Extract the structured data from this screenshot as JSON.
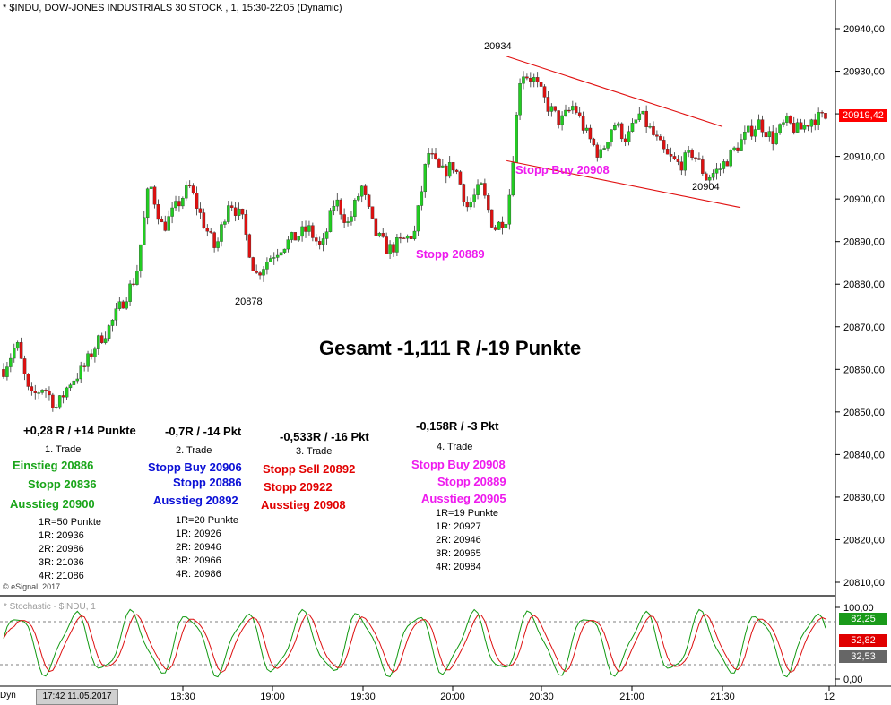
{
  "header": {
    "title": "* $INDU, DOW-JONES INDUSTRIALS 30 STOCK , 1, 15:30-22:05 (Dynamic)",
    "copyright": "© eSignal, 2017",
    "stoch_label": "* Stochastic - $INDU, 1",
    "dyn": "Dyn",
    "status_time": "17:42 11.05.2017"
  },
  "chart_data": {
    "type": "candlestick",
    "x_ticks": [
      "18:30",
      "19:00",
      "19:30",
      "20:00",
      "20:30",
      "21:00",
      "21:30",
      "12"
    ],
    "y_ticks": [
      "20940,00",
      "20930,00",
      "20920,00",
      "20910,00",
      "20900,00",
      "20890,00",
      "20880,00",
      "20870,00",
      "20860,00",
      "20850,00",
      "20840,00",
      "20830,00",
      "20820,00",
      "20810,00"
    ],
    "ylim": [
      20806,
      20946
    ],
    "last_price": "20919,42",
    "path_price": [
      20860,
      20866,
      20853,
      20856,
      20851,
      20857,
      20860,
      20866,
      20870,
      20876,
      20882,
      20904,
      20893,
      20898,
      20903,
      20895,
      20888,
      20900,
      20895,
      20882,
      20886,
      20889,
      20891,
      20893,
      20888,
      20900,
      20894,
      20903,
      20892,
      20888,
      20890,
      20892,
      20911,
      20906,
      20908,
      20898,
      20903,
      20893,
      20896,
      20930,
      20928,
      20922,
      20918,
      20922,
      20915,
      20910,
      20918,
      20914,
      20920,
      20915,
      20910,
      20908,
      20911,
      20905,
      20907,
      20911,
      20915,
      20918,
      20914,
      20918,
      20916,
      20919,
      20919
    ],
    "candles_count": 235,
    "stochastic": {
      "ylim": [
        0,
        100
      ],
      "y_ticks": [
        "100,00",
        "0,00"
      ],
      "levels": [
        80,
        20
      ],
      "tags": [
        "82,25",
        "52,82",
        "32,53"
      ]
    },
    "annotations": {
      "high_label": "20934",
      "low_label": "20878",
      "low2_label": "20904",
      "stopp_buy": "Stopp Buy 20908",
      "stopp": "Stopp 20889",
      "total": "Gesamt -1,111 R /-19 Punkte"
    },
    "channel": {
      "upper": [
        [
          20.3,
          20933.5
        ],
        [
          21.5,
          20917
        ]
      ],
      "lower": [
        [
          20.3,
          20909
        ],
        [
          21.6,
          20898
        ]
      ]
    }
  },
  "trades": [
    {
      "summary": "+0,28 R / +14 Punkte",
      "title": "1. Trade",
      "lines": [
        "Einstieg 20886",
        "Stopp 20836",
        "Ausstieg 20900"
      ],
      "r": [
        "1R=50 Punkte",
        "1R: 20936",
        "2R: 20986",
        "3R: 21036",
        "4R: 21086"
      ]
    },
    {
      "summary": "-0,7R / -14 Pkt",
      "title": "2. Trade",
      "lines": [
        "Stopp Buy 20906",
        "Stopp 20886",
        "Ausstieg 20892"
      ],
      "r": [
        "1R=20 Punkte",
        "1R: 20926",
        "2R: 20946",
        "3R: 20966",
        "4R: 20986"
      ]
    },
    {
      "summary": "-0,533R / -16 Pkt",
      "title": "3. Trade",
      "lines": [
        "Stopp Sell 20892",
        "Stopp 20922",
        "Ausstieg 20908"
      ]
    },
    {
      "summary": "-0,158R / -3 Pkt",
      "title": "4. Trade",
      "lines": [
        "Stopp Buy 20908",
        "Stopp 20889",
        "Ausstieg 20905"
      ],
      "r": [
        "1R=19 Punkte",
        "1R: 20927",
        "2R: 20946",
        "3R: 20965",
        "4R: 20984"
      ]
    }
  ],
  "colors": {
    "up": "#22cc22",
    "down": "#dd1111",
    "channel": "#e01010",
    "stoch_k": "#119911",
    "stoch_d": "#dd1111",
    "price_tag": "#ff0000"
  }
}
